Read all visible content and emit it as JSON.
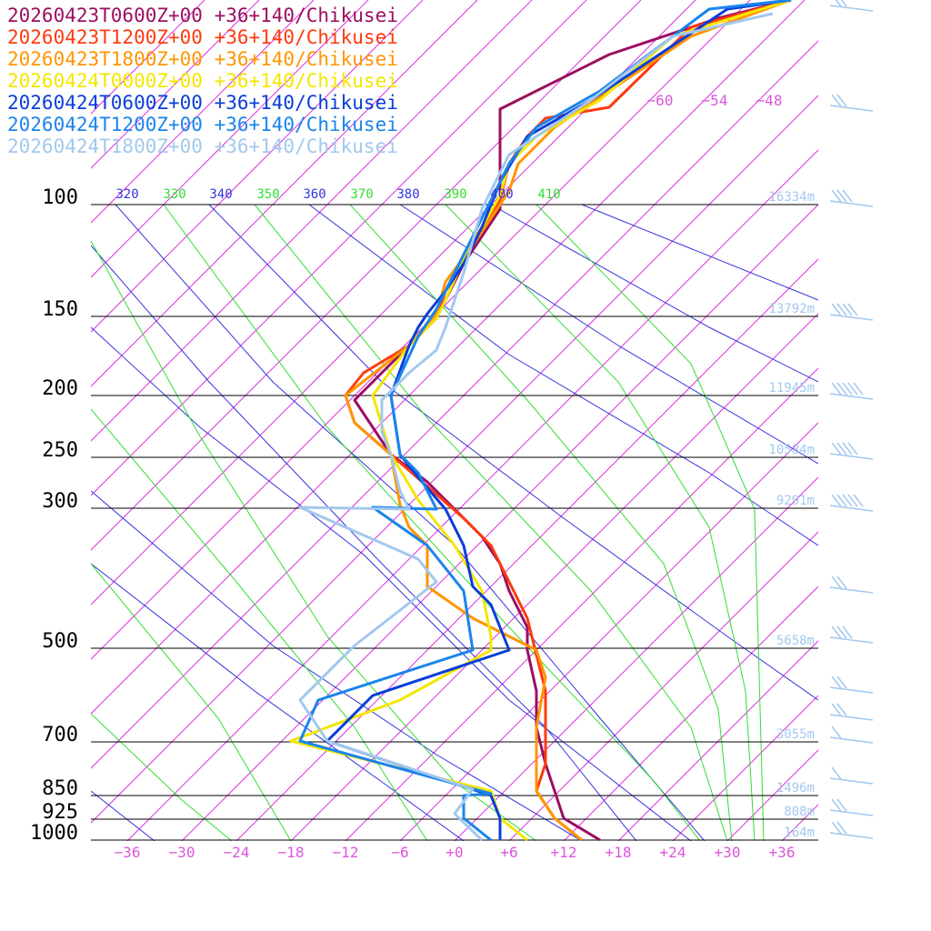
{
  "chart_data": {
    "type": "line",
    "title": "",
    "xlabel": "",
    "ylabel": "",
    "pressure_levels": [
      100,
      150,
      200,
      250,
      300,
      500,
      700,
      850,
      925,
      1000
    ],
    "pressure_labels": [
      "100",
      "150",
      "200",
      "250",
      "300",
      "500",
      "700",
      "850",
      "925",
      "1000"
    ],
    "height_labels": [
      "16334m",
      "13792m",
      "11945m",
      "10584m",
      "9291m",
      "5658m",
      "3055m",
      "1496m",
      "808m",
      "164m"
    ],
    "x_ticks": [
      -36,
      -30,
      -24,
      -18,
      -12,
      -6,
      0,
      6,
      12,
      18,
      24,
      30,
      36
    ],
    "x_tick_labels": [
      "−36",
      "−30",
      "−24",
      "−18",
      "−12",
      "−6",
      "+0",
      "+6",
      "+12",
      "+18",
      "+24",
      "+30",
      "+36"
    ],
    "upper_isotherm_labels": [
      "−60",
      "−54",
      "−48"
    ],
    "theta_labels": [
      "320",
      "330",
      "340",
      "350",
      "360",
      "370",
      "380",
      "390",
      "400",
      "410"
    ],
    "xlim": [
      -40,
      40
    ],
    "series": [
      {
        "name": "20260423T0600Z+00 +36+140/Chikusei",
        "color": "#9c0e61",
        "points": [
          [
            37,
            0
          ],
          [
            29,
            20
          ],
          [
            17,
            60
          ],
          [
            5,
            120
          ],
          [
            5,
            180
          ],
          [
            5,
            230
          ],
          [
            3,
            260
          ],
          [
            1,
            290
          ],
          [
            -1,
            330
          ],
          [
            -2,
            350
          ],
          [
            -4,
            370
          ],
          [
            -7,
            400
          ],
          [
            -11,
            440
          ],
          [
            -7,
            500
          ],
          [
            -3,
            530
          ],
          [
            0,
            560
          ],
          [
            3,
            590
          ],
          [
            5,
            620
          ],
          [
            6,
            650
          ],
          [
            8,
            690
          ],
          [
            8,
            715
          ],
          [
            9,
            760
          ],
          [
            9,
            800
          ],
          [
            10,
            840
          ],
          [
            11,
            870
          ],
          [
            12,
            900
          ],
          [
            16,
            924
          ]
        ]
      },
      {
        "name": "20260423T1200Z+00 +36+140/Chikusei",
        "color": "#ff3a0e",
        "points": [
          [
            37,
            0
          ],
          [
            26,
            30
          ],
          [
            17,
            118
          ],
          [
            10,
            130
          ],
          [
            8,
            150
          ],
          [
            6,
            180
          ],
          [
            5,
            220
          ],
          [
            3,
            250
          ],
          [
            1,
            280
          ],
          [
            -1,
            320
          ],
          [
            -2,
            350
          ],
          [
            -5,
            380
          ],
          [
            -10,
            410
          ],
          [
            -12,
            435
          ],
          [
            -11,
            465
          ],
          [
            -7,
            500
          ],
          [
            -3,
            535
          ],
          [
            1,
            570
          ],
          [
            4,
            600
          ],
          [
            6,
            640
          ],
          [
            8,
            680
          ],
          [
            9,
            720
          ],
          [
            10,
            760
          ],
          [
            10,
            800
          ],
          [
            10,
            840
          ],
          [
            9,
            870
          ],
          [
            11,
            900
          ],
          [
            14,
            924
          ]
        ]
      },
      {
        "name": "20260423T1800Z+00 +36+140/Chikusei",
        "color": "#ff9500",
        "points": [
          [
            37,
            0
          ],
          [
            26,
            40
          ],
          [
            17,
            100
          ],
          [
            11,
            140
          ],
          [
            7,
            180
          ],
          [
            6,
            210
          ],
          [
            4,
            240
          ],
          [
            2,
            270
          ],
          [
            -1,
            310
          ],
          [
            -2,
            345
          ],
          [
            -5,
            380
          ],
          [
            -12,
            435
          ],
          [
            -11,
            465
          ],
          [
            -7,
            500
          ],
          [
            -6,
            555
          ],
          [
            -5,
            580
          ],
          [
            -3,
            600
          ],
          [
            -3,
            645
          ],
          [
            2,
            680
          ],
          [
            9,
            715
          ],
          [
            10,
            745
          ],
          [
            9,
            800
          ],
          [
            9,
            840
          ],
          [
            9,
            870
          ],
          [
            11,
            900
          ],
          [
            14,
            924
          ]
        ]
      },
      {
        "name": "20260424T0000Z+00 +36+140/Chikusei",
        "color": "#f4e600",
        "points": [
          [
            37,
            0
          ],
          [
            24,
            40
          ],
          [
            16,
            110
          ],
          [
            9,
            150
          ],
          [
            6,
            180
          ],
          [
            5,
            215
          ],
          [
            3,
            250
          ],
          [
            1,
            285
          ],
          [
            -1,
            330
          ],
          [
            -2,
            350
          ],
          [
            -5,
            380
          ],
          [
            -9,
            435
          ],
          [
            -7,
            500
          ],
          [
            -4,
            550
          ],
          [
            0,
            600
          ],
          [
            3,
            650
          ],
          [
            4,
            700
          ],
          [
            4,
            715
          ],
          [
            -6,
            770
          ],
          [
            -18,
            815
          ],
          [
            -6,
            845
          ],
          [
            4,
            870
          ],
          [
            5,
            900
          ],
          [
            8,
            924
          ]
        ]
      },
      {
        "name": "20260424T0600Z+00 +36+140/Chikusei",
        "color": "#0a3ed8",
        "points": [
          [
            37,
            0
          ],
          [
            30,
            10
          ],
          [
            15,
            110
          ],
          [
            8,
            150
          ],
          [
            5,
            200
          ],
          [
            3,
            250
          ],
          [
            1,
            290
          ],
          [
            -1,
            320
          ],
          [
            -3,
            345
          ],
          [
            -4,
            360
          ],
          [
            -5,
            380
          ],
          [
            -7,
            435
          ],
          [
            -6,
            500
          ],
          [
            -4,
            525
          ],
          [
            -1,
            560
          ],
          [
            1,
            600
          ],
          [
            2,
            645
          ],
          [
            4,
            665
          ],
          [
            6,
            715
          ],
          [
            -9,
            765
          ],
          [
            -14,
            815
          ],
          [
            4,
            875
          ],
          [
            5,
            900
          ],
          [
            5,
            924
          ]
        ]
      },
      {
        "name": "20260424T1200Z+00 +36+140/Chikusei",
        "color": "#1a84ec",
        "points": [
          [
            37,
            0
          ],
          [
            28,
            10
          ],
          [
            16,
            100
          ],
          [
            9,
            140
          ],
          [
            6,
            180
          ],
          [
            4,
            220
          ],
          [
            2,
            260
          ],
          [
            0,
            300
          ],
          [
            -2,
            340
          ],
          [
            -4,
            370
          ],
          [
            -7,
            435
          ],
          [
            -6,
            500
          ],
          [
            -4,
            520
          ],
          [
            -2,
            560
          ],
          [
            -9,
            558
          ],
          [
            -3,
            600
          ],
          [
            1,
            650
          ],
          [
            2,
            715
          ],
          [
            -15,
            770
          ],
          [
            -17,
            815
          ],
          [
            4,
            873
          ],
          [
            1,
            875
          ],
          [
            1,
            900
          ],
          [
            4,
            924
          ]
        ]
      },
      {
        "name": "20260424T1800Z+00 +36+140/Chikusei",
        "color": "#a2c8ee",
        "points": [
          [
            35,
            15
          ],
          [
            24,
            40
          ],
          [
            15,
            110
          ],
          [
            6,
            170
          ],
          [
            3,
            230
          ],
          [
            1,
            300
          ],
          [
            0,
            330
          ],
          [
            -1,
            360
          ],
          [
            -2,
            385
          ],
          [
            -5,
            410
          ],
          [
            -8,
            440
          ],
          [
            -8,
            475
          ],
          [
            -7,
            500
          ],
          [
            -6,
            540
          ],
          [
            -5,
            560
          ],
          [
            -17,
            558
          ],
          [
            -4,
            615
          ],
          [
            -2,
            640
          ],
          [
            -11,
            710
          ],
          [
            -17,
            770
          ],
          [
            -14,
            815
          ],
          [
            2,
            868
          ],
          [
            0,
            895
          ],
          [
            3,
            924
          ]
        ]
      }
    ],
    "wind_barbs": [
      {
        "y": 10,
        "speed": 20
      },
      {
        "y": 120,
        "speed": 20
      },
      {
        "y": 225,
        "speed": 25
      },
      {
        "y": 350,
        "speed": 35
      },
      {
        "y": 437,
        "speed": 45
      },
      {
        "y": 503,
        "speed": 35
      },
      {
        "y": 560,
        "speed": 50
      },
      {
        "y": 650,
        "speed": 20
      },
      {
        "y": 705,
        "speed": 30
      },
      {
        "y": 760,
        "speed": 15
      },
      {
        "y": 790,
        "speed": 15
      },
      {
        "y": 815,
        "speed": 10
      },
      {
        "y": 860,
        "speed": 10
      },
      {
        "y": 895,
        "speed": 20
      },
      {
        "y": 920,
        "speed": 15
      }
    ],
    "colors": {
      "isotherm": "#dd33dd",
      "dry_adiabat": "#3333dd",
      "moist_adiabat": "#33dd33",
      "isobar": "#000000",
      "height_label": "#a2c8ee",
      "tick_label": "#dd55dd",
      "barb": "#a2c8ee"
    }
  }
}
